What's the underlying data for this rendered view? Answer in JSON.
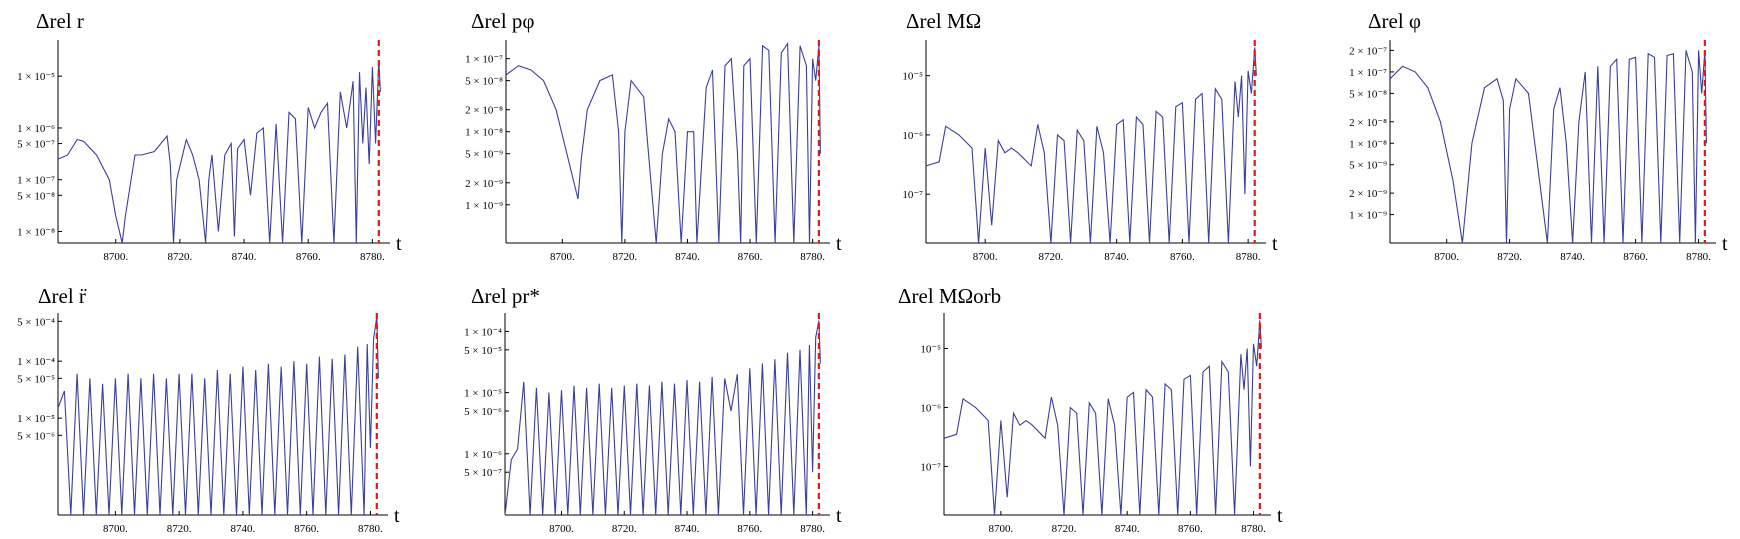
{
  "chart_data": [
    {
      "type": "line",
      "title": "Δrel r",
      "xlabel": "t",
      "xlim": [
        8682,
        8783
      ],
      "xticks": [
        "8700.",
        "8720.",
        "8740.",
        "8760.",
        "8780."
      ],
      "yscale": "log",
      "ylim": [
        6e-09,
        5e-05
      ],
      "yticks": [
        {
          "value": 1e-05,
          "label": "1 × 10⁻⁵"
        },
        {
          "value": 1e-06,
          "label": "1 × 10⁻⁶"
        },
        {
          "value": 5e-07,
          "label": "5 × 10⁻⁷"
        },
        {
          "value": 1e-07,
          "label": "1 × 10⁻⁷"
        },
        {
          "value": 5e-08,
          "label": "5 × 10⁻⁸"
        },
        {
          "value": 1e-08,
          "label": "1 × 10⁻⁸"
        }
      ],
      "merger_t": 8782,
      "series": [
        {
          "x": [
            8682,
            8685,
            8688,
            8690,
            8694,
            8698,
            8700,
            8702,
            8703,
            8706,
            8708,
            8712,
            8716,
            8717,
            8718,
            8719,
            8722,
            8724,
            8726,
            8728,
            8729,
            8730,
            8732,
            8734,
            8736,
            8737,
            8738,
            8740,
            8742,
            8744,
            8746,
            8748,
            8750,
            8752,
            8754,
            8756,
            8758,
            8760,
            8762,
            8764,
            8766,
            8768,
            8770,
            8772,
            8774,
            8775,
            8776,
            8777,
            8778,
            8779,
            8780,
            8781,
            8782,
            8782.5
          ],
          "y": [
            2.5e-07,
            3e-07,
            6e-07,
            5.5e-07,
            3e-07,
            1e-07,
            2e-08,
            6e-09,
            2e-08,
            3e-07,
            3e-07,
            3.5e-07,
            7e-07,
            2e-07,
            6e-09,
            1e-07,
            6e-07,
            3e-07,
            1e-07,
            6e-09,
            1e-07,
            3e-07,
            1e-08,
            3e-07,
            5e-07,
            8e-09,
            4e-07,
            6e-07,
            5e-08,
            8e-07,
            1e-06,
            6e-09,
            1.2e-06,
            6e-09,
            2e-06,
            1.5e-06,
            6e-09,
            2.5e-06,
            1e-06,
            2e-06,
            3e-06,
            6e-09,
            5e-06,
            1e-06,
            8e-06,
            6e-09,
            1.2e-05,
            5e-07,
            6e-06,
            2e-07,
            1.5e-05,
            5e-07,
            2e-05,
            5e-06
          ]
        }
      ]
    },
    {
      "type": "line",
      "title": "Δrel pφ",
      "xlabel": "t",
      "xlim": [
        8682,
        8783
      ],
      "xticks": [
        "8700.",
        "8720.",
        "8740.",
        "8760.",
        "8780."
      ],
      "yscale": "log",
      "ylim": [
        3e-10,
        1.8e-07
      ],
      "yticks": [
        {
          "value": 1e-07,
          "label": "1 × 10⁻⁷"
        },
        {
          "value": 5e-08,
          "label": "5 × 10⁻⁸"
        },
        {
          "value": 2e-08,
          "label": "2 × 10⁻⁸"
        },
        {
          "value": 1e-08,
          "label": "1 × 10⁻⁸"
        },
        {
          "value": 5e-09,
          "label": "5 × 10⁻⁹"
        },
        {
          "value": 2e-09,
          "label": "2 × 10⁻⁹"
        },
        {
          "value": 1e-09,
          "label": "1 × 10⁻⁹"
        }
      ],
      "merger_t": 8782,
      "series": [
        {
          "x": [
            8682,
            8686,
            8690,
            8694,
            8698,
            8702,
            8705,
            8706,
            8708,
            8712,
            8716,
            8718,
            8719,
            8720,
            8722,
            8726,
            8728,
            8730,
            8732,
            8734,
            8736,
            8738,
            8740,
            8742,
            8743,
            8746,
            8748,
            8750,
            8752,
            8754,
            8756,
            8757,
            8758,
            8760,
            8762,
            8764,
            8766,
            8768,
            8770,
            8772,
            8774,
            8776,
            8778,
            8779,
            8780,
            8781,
            8782,
            8782.5
          ],
          "y": [
            6e-08,
            8e-08,
            7e-08,
            5e-08,
            2e-08,
            4e-09,
            1.2e-09,
            4e-09,
            2e-08,
            5e-08,
            6e-08,
            1e-08,
            3e-10,
            1e-08,
            5e-08,
            3e-08,
            3e-09,
            3e-10,
            5e-09,
            1.5e-08,
            1e-08,
            3e-10,
            1e-08,
            1e-08,
            3e-10,
            4e-08,
            7e-08,
            3e-10,
            8e-08,
            1e-07,
            5e-09,
            3e-10,
            8e-08,
            1e-07,
            3e-10,
            1.5e-07,
            1.3e-07,
            3e-10,
            1.2e-07,
            1.6e-07,
            3e-10,
            1.5e-07,
            8e-08,
            3e-10,
            1e-07,
            5e-08,
            1.5e-07,
            5e-09
          ]
        }
      ]
    },
    {
      "type": "line",
      "title": "Δrel MΩ",
      "xlabel": "t",
      "xlim": [
        8682,
        8783
      ],
      "xticks": [
        "8700.",
        "8720.",
        "8740.",
        "8760.",
        "8780."
      ],
      "yscale": "log",
      "ylim": [
        1.5e-08,
        4e-05
      ],
      "yticks": [
        {
          "value": 1e-05,
          "label": "10⁻⁵"
        },
        {
          "value": 1e-06,
          "label": "10⁻⁶"
        },
        {
          "value": 1e-07,
          "label": "10⁻⁷"
        }
      ],
      "merger_t": 8782,
      "series": [
        {
          "x": [
            8682,
            8686,
            8688,
            8692,
            8696,
            8698,
            8700,
            8702,
            8704,
            8706,
            8708,
            8710,
            8714,
            8716,
            8718,
            8720,
            8722,
            8724,
            8726,
            8728,
            8730,
            8732,
            8734,
            8736,
            8738,
            8740,
            8742,
            8744,
            8746,
            8748,
            8750,
            8752,
            8754,
            8756,
            8758,
            8760,
            8762,
            8764,
            8766,
            8768,
            8770,
            8772,
            8774,
            8776,
            8777,
            8778,
            8779,
            8780,
            8781,
            8782,
            8782.5
          ],
          "y": [
            3e-07,
            3.5e-07,
            1.4e-06,
            1e-06,
            6e-07,
            1.5e-08,
            6e-07,
            3e-08,
            8e-07,
            5e-07,
            6e-07,
            5e-07,
            3e-07,
            1.5e-06,
            5e-07,
            1.5e-08,
            1e-06,
            8e-07,
            1.5e-08,
            1.2e-06,
            8e-07,
            1.5e-08,
            1.4e-06,
            5e-07,
            1.5e-08,
            1.5e-06,
            1.8e-06,
            1.5e-08,
            2e-06,
            1.5e-06,
            1.5e-08,
            2.5e-06,
            2e-06,
            1.5e-08,
            3e-06,
            3.5e-06,
            1.5e-08,
            4e-06,
            5e-06,
            1.5e-08,
            6e-06,
            4e-06,
            1.5e-08,
            8e-06,
            2e-06,
            1e-05,
            1e-07,
            1.2e-05,
            5e-06,
            3e-05,
            1e-05
          ]
        }
      ]
    },
    {
      "type": "line",
      "title": "Δrel φ",
      "xlabel": "t",
      "xlim": [
        8682,
        8783
      ],
      "xticks": [
        "8700.",
        "8720.",
        "8740.",
        "8760.",
        "8780."
      ],
      "yscale": "log",
      "ylim": [
        4e-10,
        2.8e-07
      ],
      "yticks": [
        {
          "value": 2e-07,
          "label": "2 × 10⁻⁷"
        },
        {
          "value": 1e-07,
          "label": "1 × 10⁻⁷"
        },
        {
          "value": 5e-08,
          "label": "5 × 10⁻⁸"
        },
        {
          "value": 2e-08,
          "label": "2 × 10⁻⁸"
        },
        {
          "value": 1e-08,
          "label": "1 × 10⁻⁸"
        },
        {
          "value": 5e-09,
          "label": "5 × 10⁻⁹"
        },
        {
          "value": 2e-09,
          "label": "2 × 10⁻⁹"
        },
        {
          "value": 1e-09,
          "label": "1 × 10⁻⁹"
        }
      ],
      "merger_t": 8782,
      "series": [
        {
          "x": [
            8682,
            8686,
            8690,
            8694,
            8698,
            8702,
            8705,
            8708,
            8712,
            8716,
            8718,
            8719,
            8720,
            8722,
            8726,
            8728,
            8732,
            8734,
            8736,
            8738,
            8740,
            8742,
            8744,
            8746,
            8748,
            8750,
            8752,
            8754,
            8756,
            8758,
            8760,
            8762,
            8764,
            8766,
            8768,
            8770,
            8772,
            8774,
            8776,
            8778,
            8779,
            8780,
            8781,
            8782,
            8782.5
          ],
          "y": [
            8e-08,
            1.2e-07,
            1e-07,
            6e-08,
            2e-08,
            3e-09,
            4e-10,
            1e-08,
            6e-08,
            8e-08,
            4e-08,
            4e-10,
            3e-08,
            8e-08,
            5e-08,
            1e-08,
            4e-10,
            3e-08,
            6e-08,
            1e-08,
            4e-10,
            2e-08,
            1e-07,
            4e-10,
            1.2e-07,
            4e-10,
            1.2e-07,
            1.5e-07,
            4e-10,
            1.5e-07,
            1.6e-07,
            4e-10,
            1.8e-07,
            1.6e-07,
            4e-10,
            1.7e-07,
            1.8e-07,
            4e-10,
            2e-07,
            1e-07,
            4e-10,
            2e-07,
            5e-08,
            2e-07,
            1e-08
          ]
        }
      ]
    },
    {
      "type": "line",
      "title": "Δrel r̈",
      "xlabel": "t",
      "xlim": [
        8682,
        8783
      ],
      "xticks": [
        "8700.",
        "8720.",
        "8740.",
        "8760.",
        "8780."
      ],
      "yscale": "log",
      "ylim": [
        2e-07,
        0.0007
      ],
      "yticks": [
        {
          "value": 0.0005,
          "label": "5 × 10⁻⁴"
        },
        {
          "value": 0.0001,
          "label": "1 × 10⁻⁴"
        },
        {
          "value": 5e-05,
          "label": "5 × 10⁻⁵"
        },
        {
          "value": 1e-05,
          "label": "1 × 10⁻⁵"
        },
        {
          "value": 5e-06,
          "label": "5 × 10⁻⁶"
        }
      ],
      "merger_t": 8782,
      "series": [
        {
          "x": [
            8682,
            8684,
            8686,
            8688,
            8690,
            8692,
            8694,
            8696,
            8698,
            8700,
            8702,
            8704,
            8706,
            8708,
            8710,
            8712,
            8714,
            8716,
            8718,
            8720,
            8722,
            8724,
            8726,
            8728,
            8730,
            8732,
            8734,
            8736,
            8738,
            8740,
            8742,
            8744,
            8746,
            8748,
            8750,
            8752,
            8754,
            8756,
            8758,
            8760,
            8762,
            8764,
            8766,
            8768,
            8770,
            8772,
            8774,
            8776,
            8778,
            8779,
            8780,
            8781,
            8782,
            8782.5
          ],
          "y": [
            1.5e-05,
            3e-05,
            2e-07,
            6e-05,
            2e-07,
            5e-05,
            2e-07,
            4e-05,
            2e-07,
            5e-05,
            2e-07,
            6e-05,
            2e-07,
            5e-05,
            2e-07,
            6e-05,
            2e-07,
            5e-05,
            2e-07,
            6e-05,
            2e-07,
            6e-05,
            2e-07,
            5e-05,
            2e-07,
            7e-05,
            2e-07,
            6e-05,
            2e-07,
            8e-05,
            2e-07,
            7e-05,
            2e-07,
            9e-05,
            2e-07,
            8e-05,
            2e-07,
            0.0001,
            2e-07,
            9e-05,
            2e-07,
            0.00012,
            2e-07,
            0.00011,
            2e-07,
            0.00013,
            2e-07,
            0.00018,
            2e-07,
            0.0002,
            3e-06,
            0.00025,
            0.0006,
            5e-05
          ]
        }
      ]
    },
    {
      "type": "line",
      "title": "Δrel pr*",
      "xlabel": "t",
      "xlim": [
        8682,
        8783
      ],
      "xticks": [
        "8700.",
        "8720.",
        "8740.",
        "8760.",
        "8780."
      ],
      "yscale": "log",
      "ylim": [
        1e-07,
        0.0002
      ],
      "yticks": [
        {
          "value": 0.0001,
          "label": "1 × 10⁻⁴"
        },
        {
          "value": 5e-05,
          "label": "5 × 10⁻⁵"
        },
        {
          "value": 1e-05,
          "label": "1 × 10⁻⁵"
        },
        {
          "value": 5e-06,
          "label": "5 × 10⁻⁶"
        },
        {
          "value": 1e-06,
          "label": "1 × 10⁻⁶"
        },
        {
          "value": 5e-07,
          "label": "5 × 10⁻⁷"
        }
      ],
      "merger_t": 8782,
      "series": [
        {
          "x": [
            8682,
            8684,
            8686,
            8688,
            8690,
            8692,
            8694,
            8696,
            8698,
            8700,
            8702,
            8704,
            8706,
            8708,
            8710,
            8712,
            8714,
            8716,
            8718,
            8720,
            8722,
            8724,
            8726,
            8728,
            8730,
            8732,
            8734,
            8736,
            8738,
            8740,
            8742,
            8744,
            8746,
            8748,
            8750,
            8752,
            8754,
            8756,
            8758,
            8760,
            8762,
            8764,
            8766,
            8768,
            8770,
            8772,
            8774,
            8776,
            8778,
            8779,
            8780,
            8781,
            8782,
            8782.5
          ],
          "y": [
            1e-07,
            8e-07,
            1.2e-06,
            1.5e-05,
            1e-07,
            1.2e-05,
            1e-07,
            1e-05,
            1e-07,
            1.1e-05,
            1e-07,
            1.3e-05,
            1e-07,
            1.2e-05,
            1e-07,
            1.4e-05,
            1e-07,
            1.2e-05,
            1e-07,
            1.3e-05,
            1e-07,
            1.4e-05,
            1e-07,
            1.3e-05,
            1e-07,
            1.5e-05,
            1e-07,
            1.4e-05,
            1e-07,
            1.6e-05,
            1e-07,
            1.5e-05,
            1e-07,
            1.8e-05,
            1e-07,
            1.7e-05,
            5e-06,
            2e-05,
            1e-07,
            2.5e-05,
            1e-07,
            3e-05,
            1e-07,
            3.5e-05,
            1e-07,
            4.5e-05,
            1e-07,
            5e-05,
            1e-07,
            6e-05,
            5e-07,
            8e-05,
            0.00015,
            3e-05
          ]
        }
      ]
    },
    {
      "type": "line",
      "title": "Δrel MΩorb",
      "xlabel": "t",
      "xlim": [
        8682,
        8783
      ],
      "xticks": [
        "8700.",
        "8720.",
        "8740.",
        "8760.",
        "8780."
      ],
      "yscale": "log",
      "ylim": [
        1.5e-08,
        4e-05
      ],
      "yticks": [
        {
          "value": 1e-05,
          "label": "10⁻⁵"
        },
        {
          "value": 1e-06,
          "label": "10⁻⁶"
        },
        {
          "value": 1e-07,
          "label": "10⁻⁷"
        }
      ],
      "merger_t": 8782,
      "series": [
        {
          "x": [
            8682,
            8686,
            8688,
            8692,
            8696,
            8698,
            8700,
            8702,
            8704,
            8706,
            8708,
            8710,
            8714,
            8716,
            8718,
            8720,
            8722,
            8724,
            8726,
            8728,
            8730,
            8732,
            8734,
            8736,
            8738,
            8740,
            8742,
            8744,
            8746,
            8748,
            8750,
            8752,
            8754,
            8756,
            8758,
            8760,
            8762,
            8764,
            8766,
            8768,
            8770,
            8772,
            8774,
            8776,
            8777,
            8778,
            8779,
            8780,
            8781,
            8782,
            8782.5
          ],
          "y": [
            3e-07,
            3.5e-07,
            1.4e-06,
            1e-06,
            6e-07,
            1.5e-08,
            6e-07,
            3e-08,
            8e-07,
            5e-07,
            6e-07,
            5e-07,
            3e-07,
            1.5e-06,
            5e-07,
            1.5e-08,
            1e-06,
            8e-07,
            1.5e-08,
            1.2e-06,
            8e-07,
            1.5e-08,
            1.4e-06,
            5e-07,
            1.5e-08,
            1.5e-06,
            1.8e-06,
            1.5e-08,
            2e-06,
            1.5e-06,
            1.5e-08,
            2.5e-06,
            2e-06,
            1.5e-08,
            3e-06,
            3.5e-06,
            1.5e-08,
            4e-06,
            5e-06,
            1.5e-08,
            6e-06,
            4e-06,
            1.5e-08,
            8e-06,
            2e-06,
            1e-05,
            1e-07,
            1.2e-05,
            5e-06,
            3e-05,
            1e-05
          ]
        }
      ]
    }
  ]
}
